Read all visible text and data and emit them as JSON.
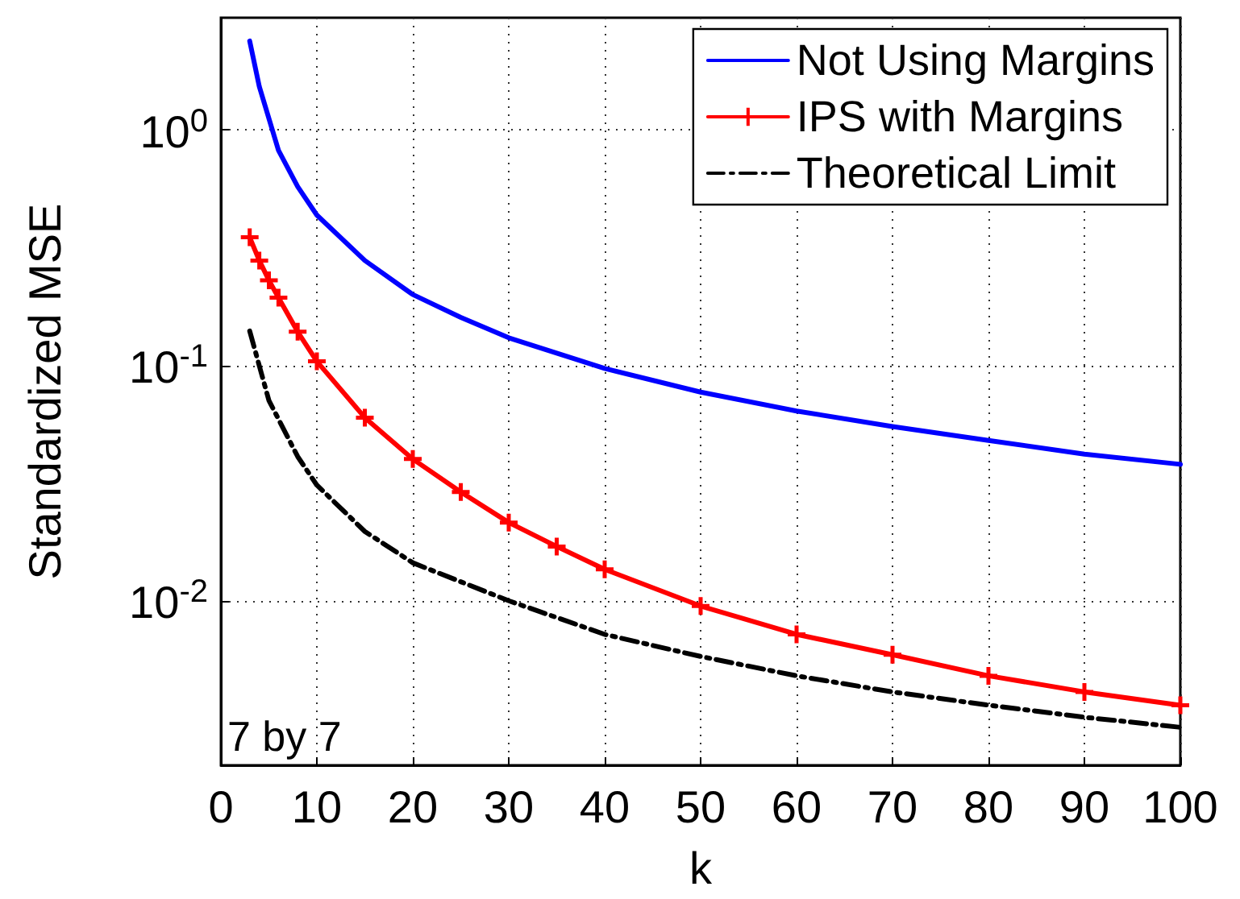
{
  "chart_data": {
    "type": "line",
    "xlabel": "k",
    "ylabel": "Standardized MSE",
    "annotations": [
      "7 by 7"
    ],
    "log": "y",
    "grid": true,
    "legend": "top right",
    "xlim": [
      0,
      100
    ],
    "xticks": [
      0,
      10,
      20,
      30,
      40,
      50,
      60,
      70,
      80,
      90,
      100
    ],
    "ylim": [
      0.002,
      3
    ],
    "yticks": [
      {
        "value": 1,
        "label": "10$^{0}$"
      },
      {
        "value": 0.1,
        "label": "10$^{-1}$"
      },
      {
        "value": 0.01,
        "label": "10$^{-2}$"
      }
    ],
    "series": [
      {
        "name": "Not Using Margins",
        "color": "#0000ff",
        "marker": "none",
        "line_style": "solid",
        "x": [
          3,
          4,
          6,
          8,
          10,
          15,
          20,
          25,
          30,
          40,
          50,
          60,
          70,
          80,
          90,
          100
        ],
        "values": [
          2.39,
          1.53,
          0.82,
          0.575,
          0.435,
          0.279,
          0.2,
          0.16,
          0.131,
          0.097,
          0.077,
          0.064,
          0.055,
          0.048,
          0.042,
          0.038
        ]
      },
      {
        "name": "IPS with Margins",
        "color": "#ff0000",
        "marker": "cross",
        "line_style": "solid",
        "x": [
          3,
          4,
          5,
          6,
          8,
          10,
          15,
          20,
          25,
          30,
          35,
          40,
          50,
          60,
          70,
          80,
          90,
          100
        ],
        "values": [
          0.35,
          0.279,
          0.23,
          0.194,
          0.139,
          0.104,
          0.06,
          0.04,
          0.029,
          0.0215,
          0.017,
          0.0136,
          0.0095,
          0.0072,
          0.0059,
          0.0048,
          0.0041,
          0.0036
        ]
      },
      {
        "name": "Theoretical Limit",
        "color": "#000000",
        "marker": "none",
        "line_style": "dashed",
        "x": [
          3,
          5,
          8,
          10,
          15,
          20,
          30,
          40,
          50,
          60,
          70,
          80,
          90,
          100
        ],
        "values": [
          0.14,
          0.071,
          0.041,
          0.031,
          0.0197,
          0.0145,
          0.01,
          0.0072,
          0.0058,
          0.0048,
          0.0041,
          0.0036,
          0.0032,
          0.0029
        ]
      }
    ]
  }
}
